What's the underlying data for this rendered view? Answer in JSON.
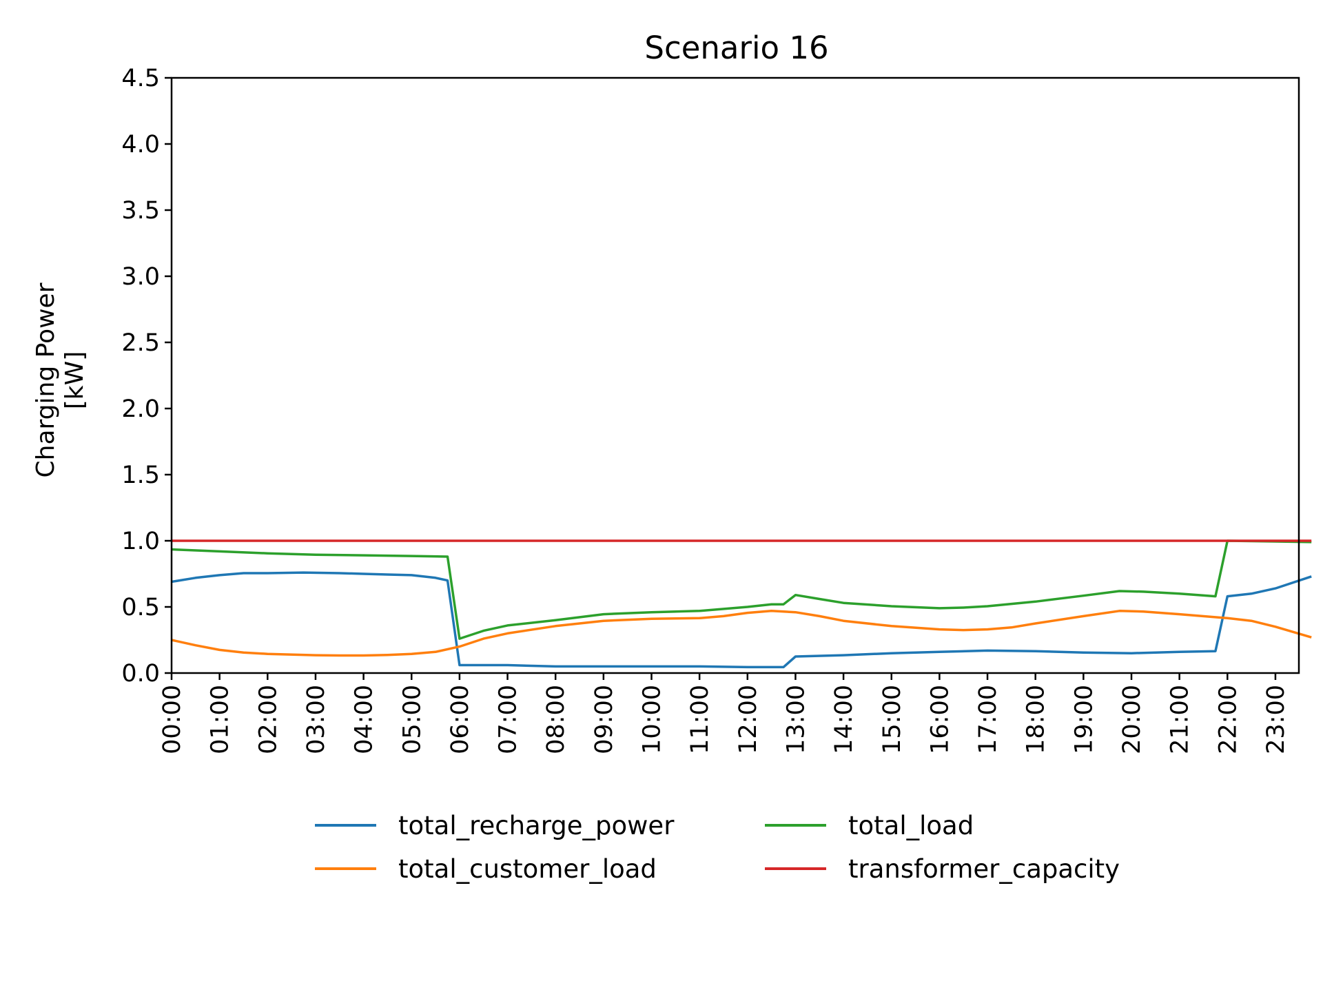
{
  "chart_data": {
    "type": "line",
    "title": "Scenario 16",
    "xlabel": "",
    "ylabel_lines": [
      "Charging Power",
      "[kW]"
    ],
    "ylim": [
      0,
      4.5
    ],
    "yticks": [
      "0.0",
      "0.5",
      "1.0",
      "1.5",
      "2.0",
      "2.5",
      "3.0",
      "3.5",
      "4.0",
      "4.5"
    ],
    "xticks": [
      "00:00",
      "01:00",
      "02:00",
      "03:00",
      "04:00",
      "05:00",
      "06:00",
      "07:00",
      "08:00",
      "09:00",
      "10:00",
      "11:00",
      "12:00",
      "13:00",
      "14:00",
      "15:00",
      "16:00",
      "17:00",
      "18:00",
      "19:00",
      "20:00",
      "21:00",
      "22:00",
      "23:00"
    ],
    "legend_placement": "below plot, two columns",
    "series": [
      {
        "name": "total_recharge_power",
        "color": "#1f77b4",
        "points": [
          [
            "00:00",
            0.69
          ],
          [
            "00:30",
            0.72
          ],
          [
            "01:00",
            0.74
          ],
          [
            "01:30",
            0.755
          ],
          [
            "02:00",
            0.755
          ],
          [
            "02:45",
            0.76
          ],
          [
            "03:30",
            0.755
          ],
          [
            "04:00",
            0.75
          ],
          [
            "04:30",
            0.745
          ],
          [
            "05:00",
            0.74
          ],
          [
            "05:30",
            0.72
          ],
          [
            "05:45",
            0.7
          ],
          [
            "06:00",
            0.06
          ],
          [
            "07:00",
            0.06
          ],
          [
            "08:00",
            0.05
          ],
          [
            "09:00",
            0.05
          ],
          [
            "10:00",
            0.05
          ],
          [
            "11:00",
            0.05
          ],
          [
            "12:00",
            0.045
          ],
          [
            "12:45",
            0.045
          ],
          [
            "13:00",
            0.125
          ],
          [
            "14:00",
            0.135
          ],
          [
            "15:00",
            0.15
          ],
          [
            "16:00",
            0.16
          ],
          [
            "17:00",
            0.17
          ],
          [
            "18:00",
            0.165
          ],
          [
            "19:00",
            0.155
          ],
          [
            "20:00",
            0.15
          ],
          [
            "21:00",
            0.16
          ],
          [
            "21:45",
            0.165
          ],
          [
            "22:00",
            0.58
          ],
          [
            "22:30",
            0.6
          ],
          [
            "23:00",
            0.64
          ],
          [
            "23:45",
            0.73
          ]
        ]
      },
      {
        "name": "total_customer_load",
        "color": "#ff7f0e",
        "points": [
          [
            "00:00",
            0.25
          ],
          [
            "00:30",
            0.21
          ],
          [
            "01:00",
            0.175
          ],
          [
            "01:30",
            0.155
          ],
          [
            "02:00",
            0.145
          ],
          [
            "03:00",
            0.135
          ],
          [
            "03:30",
            0.133
          ],
          [
            "04:00",
            0.133
          ],
          [
            "04:30",
            0.137
          ],
          [
            "05:00",
            0.145
          ],
          [
            "05:30",
            0.16
          ],
          [
            "06:00",
            0.2
          ],
          [
            "06:30",
            0.26
          ],
          [
            "07:00",
            0.3
          ],
          [
            "08:00",
            0.355
          ],
          [
            "09:00",
            0.395
          ],
          [
            "10:00",
            0.41
          ],
          [
            "11:00",
            0.415
          ],
          [
            "11:30",
            0.43
          ],
          [
            "12:00",
            0.455
          ],
          [
            "12:30",
            0.47
          ],
          [
            "13:00",
            0.46
          ],
          [
            "13:30",
            0.43
          ],
          [
            "14:00",
            0.395
          ],
          [
            "15:00",
            0.355
          ],
          [
            "16:00",
            0.33
          ],
          [
            "16:30",
            0.325
          ],
          [
            "17:00",
            0.33
          ],
          [
            "17:30",
            0.345
          ],
          [
            "18:00",
            0.375
          ],
          [
            "19:00",
            0.43
          ],
          [
            "19:45",
            0.47
          ],
          [
            "20:15",
            0.465
          ],
          [
            "21:00",
            0.445
          ],
          [
            "22:00",
            0.415
          ],
          [
            "22:30",
            0.395
          ],
          [
            "23:00",
            0.35
          ],
          [
            "23:45",
            0.27
          ]
        ]
      },
      {
        "name": "total_load",
        "color": "#2ca02c",
        "points": [
          [
            "00:00",
            0.935
          ],
          [
            "01:00",
            0.92
          ],
          [
            "02:00",
            0.905
          ],
          [
            "03:00",
            0.895
          ],
          [
            "04:00",
            0.89
          ],
          [
            "05:00",
            0.885
          ],
          [
            "05:45",
            0.88
          ],
          [
            "06:00",
            0.26
          ],
          [
            "06:30",
            0.32
          ],
          [
            "07:00",
            0.36
          ],
          [
            "08:00",
            0.4
          ],
          [
            "09:00",
            0.445
          ],
          [
            "10:00",
            0.46
          ],
          [
            "11:00",
            0.47
          ],
          [
            "12:00",
            0.5
          ],
          [
            "12:30",
            0.52
          ],
          [
            "12:45",
            0.52
          ],
          [
            "13:00",
            0.59
          ],
          [
            "13:30",
            0.56
          ],
          [
            "14:00",
            0.53
          ],
          [
            "15:00",
            0.505
          ],
          [
            "16:00",
            0.49
          ],
          [
            "16:30",
            0.495
          ],
          [
            "17:00",
            0.505
          ],
          [
            "18:00",
            0.54
          ],
          [
            "19:00",
            0.585
          ],
          [
            "19:45",
            0.62
          ],
          [
            "20:15",
            0.615
          ],
          [
            "21:00",
            0.6
          ],
          [
            "21:45",
            0.58
          ],
          [
            "22:00",
            1.0
          ],
          [
            "23:00",
            0.995
          ],
          [
            "23:45",
            0.99
          ]
        ]
      },
      {
        "name": "transformer_capacity",
        "color": "#d62728",
        "points": [
          [
            "00:00",
            1.0
          ],
          [
            "23:45",
            1.0
          ]
        ]
      }
    ]
  }
}
